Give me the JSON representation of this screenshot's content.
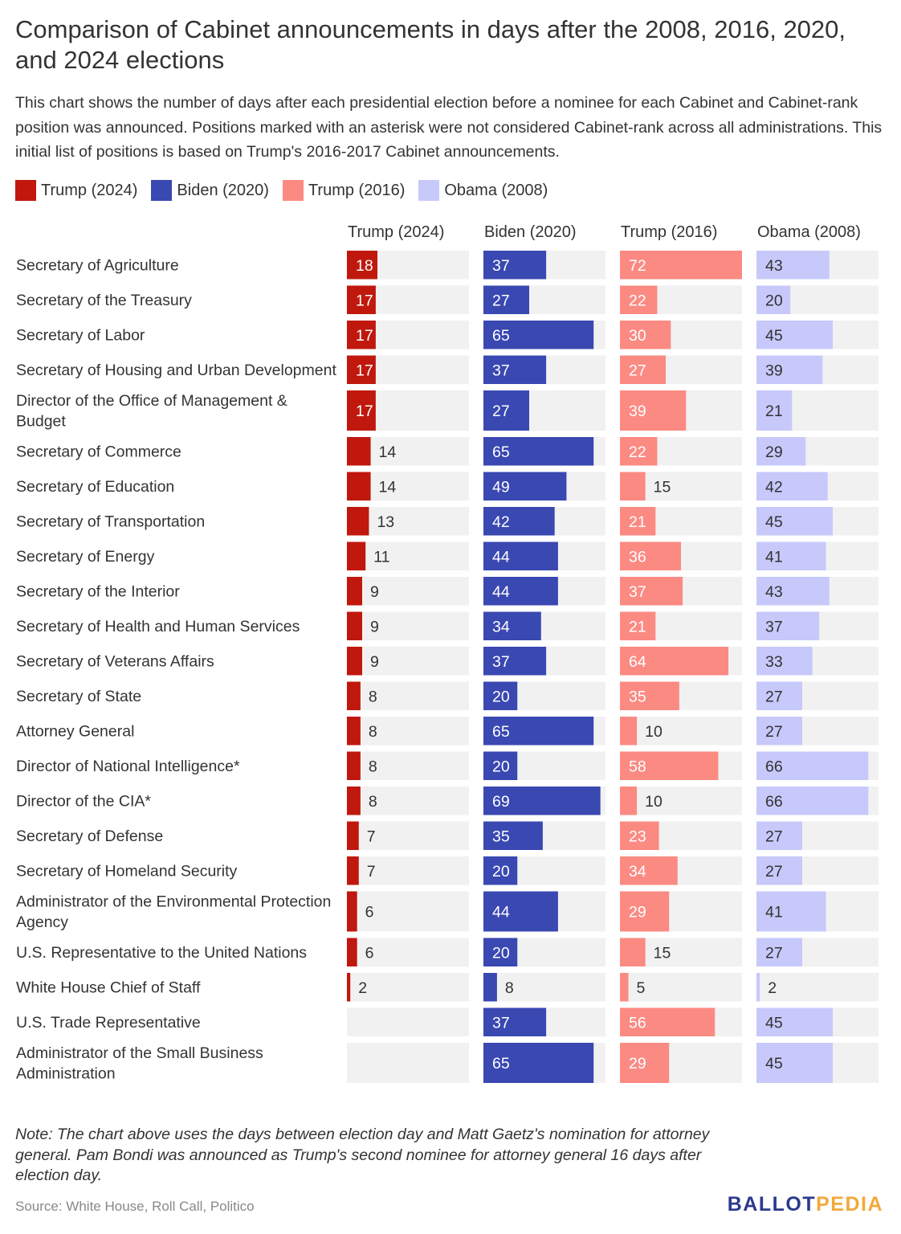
{
  "chart_data": {
    "type": "bar",
    "title": "Comparison of Cabinet announcements in days after the 2008, 2016, 2020, and 2024 elections",
    "subtitle": "This chart shows the number of days after each presidential election before a nominee for each Cabinet and Cabinet-rank position was announced. Positions marked with an asterisk were not considered Cabinet-rank across all administrations. This initial list of positions is based on Trump's 2016-2017 Cabinet announcements.",
    "xlim": [
      0,
      72
    ],
    "categories": [
      "Secretary of Agriculture",
      "Secretary of the Treasury",
      "Secretary of Labor",
      "Secretary of Housing and Urban Development",
      "Director of the Office of Management & Budget",
      "Secretary of Commerce",
      "Secretary of Education",
      "Secretary of Transportation",
      "Secretary of Energy",
      "Secretary of the Interior",
      "Secretary of Health and Human Services",
      "Secretary of Veterans Affairs",
      "Secretary of State",
      "Attorney General",
      "Director of National Intelligence*",
      "Director of the CIA*",
      "Secretary of Defense",
      "Secretary of Homeland Security",
      "Administrator of the Environmental Protection Agency",
      "U.S. Representative to the United Nations",
      "White House Chief of Staff",
      "U.S. Trade Representative",
      "Administrator of the Small Business Administration"
    ],
    "series": [
      {
        "name": "Trump (2024)",
        "color": "#c0180d",
        "light": false,
        "values": [
          18,
          17,
          17,
          17,
          17,
          14,
          14,
          13,
          11,
          9,
          9,
          9,
          8,
          8,
          8,
          8,
          7,
          7,
          6,
          6,
          2,
          null,
          null
        ]
      },
      {
        "name": "Biden (2020)",
        "color": "#3a48b2",
        "light": false,
        "values": [
          37,
          27,
          65,
          37,
          27,
          65,
          49,
          42,
          44,
          44,
          34,
          37,
          20,
          65,
          20,
          69,
          35,
          20,
          44,
          20,
          8,
          37,
          65
        ]
      },
      {
        "name": "Trump (2016)",
        "color": "#fb8a83",
        "light": false,
        "values": [
          72,
          22,
          30,
          27,
          39,
          22,
          15,
          21,
          36,
          37,
          21,
          64,
          35,
          10,
          58,
          10,
          23,
          34,
          29,
          15,
          5,
          56,
          29
        ]
      },
      {
        "name": "Obama (2008)",
        "color": "#c7c9fb",
        "light": true,
        "values": [
          43,
          20,
          45,
          39,
          21,
          29,
          42,
          45,
          41,
          43,
          37,
          33,
          27,
          27,
          66,
          66,
          27,
          27,
          41,
          27,
          2,
          45,
          45
        ]
      }
    ]
  },
  "note": "Note: The chart above uses the days between election day and Matt Gaetz's nomination for attorney general. Pam Bondi was announced as Trump's second nominee for attorney general 16 days after election day.",
  "source": "Source: White House, Roll Call, Politico",
  "logo": {
    "part1": "BALLOT",
    "part2": "PEDIA"
  }
}
